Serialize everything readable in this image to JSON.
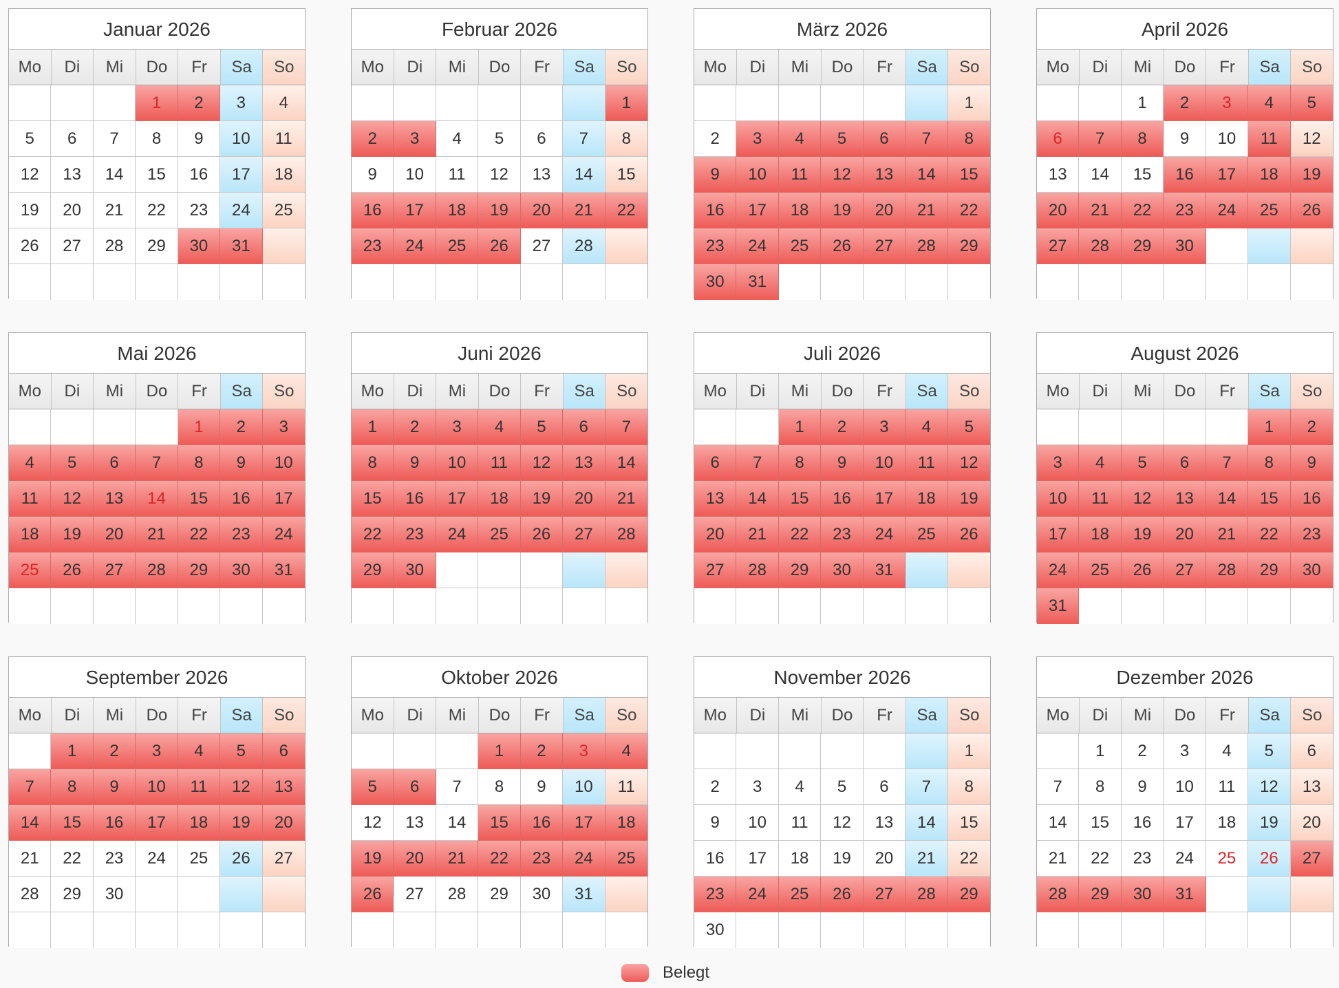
{
  "weekdays": [
    "Mo",
    "Di",
    "Mi",
    "Do",
    "Fr",
    "Sa",
    "So"
  ],
  "colors": {
    "booked": "#f07470",
    "saturday": "#c7ecfb",
    "sunday": "#fde0d4",
    "holiday_text": "#d8272b"
  },
  "months": [
    {
      "title": "Januar 2026",
      "start": 3,
      "days": 31,
      "booked": [
        1,
        2,
        30,
        31
      ],
      "holidays": [
        1
      ]
    },
    {
      "title": "Februar 2026",
      "start": 6,
      "days": 28,
      "booked": [
        1,
        2,
        3,
        16,
        17,
        18,
        19,
        20,
        21,
        22,
        23,
        24,
        25,
        26
      ],
      "holidays": []
    },
    {
      "title": "März 2026",
      "start": 6,
      "days": 31,
      "booked": [
        3,
        4,
        5,
        6,
        7,
        8,
        9,
        10,
        11,
        12,
        13,
        14,
        15,
        16,
        17,
        18,
        19,
        20,
        21,
        22,
        23,
        24,
        25,
        26,
        27,
        28,
        29,
        30,
        31
      ],
      "holidays": []
    },
    {
      "title": "April 2026",
      "start": 2,
      "days": 30,
      "booked": [
        2,
        3,
        4,
        5,
        6,
        7,
        8,
        11,
        16,
        17,
        18,
        19,
        20,
        21,
        22,
        23,
        24,
        25,
        26,
        27,
        28,
        29,
        30
      ],
      "holidays": [
        3,
        6
      ]
    },
    {
      "title": "Mai 2026",
      "start": 4,
      "days": 31,
      "booked": [
        1,
        2,
        3,
        4,
        5,
        6,
        7,
        8,
        9,
        10,
        11,
        12,
        13,
        14,
        15,
        16,
        17,
        18,
        19,
        20,
        21,
        22,
        23,
        24,
        25,
        26,
        27,
        28,
        29,
        30,
        31
      ],
      "holidays": [
        1,
        14,
        25
      ]
    },
    {
      "title": "Juni 2026",
      "start": 0,
      "days": 30,
      "booked": [
        1,
        2,
        3,
        4,
        5,
        6,
        7,
        8,
        9,
        10,
        11,
        12,
        13,
        14,
        15,
        16,
        17,
        18,
        19,
        20,
        21,
        22,
        23,
        24,
        25,
        26,
        27,
        28,
        29,
        30
      ],
      "holidays": []
    },
    {
      "title": "Juli 2026",
      "start": 2,
      "days": 31,
      "booked": [
        1,
        2,
        3,
        4,
        5,
        6,
        7,
        8,
        9,
        10,
        11,
        12,
        13,
        14,
        15,
        16,
        17,
        18,
        19,
        20,
        21,
        22,
        23,
        24,
        25,
        26,
        27,
        28,
        29,
        30,
        31
      ],
      "holidays": []
    },
    {
      "title": "August 2026",
      "start": 5,
      "days": 31,
      "booked": [
        1,
        2,
        3,
        4,
        5,
        6,
        7,
        8,
        9,
        10,
        11,
        12,
        13,
        14,
        15,
        16,
        17,
        18,
        19,
        20,
        21,
        22,
        23,
        24,
        25,
        26,
        27,
        28,
        29,
        30,
        31
      ],
      "holidays": []
    },
    {
      "title": "September 2026",
      "start": 1,
      "days": 30,
      "booked": [
        1,
        2,
        3,
        4,
        5,
        6,
        7,
        8,
        9,
        10,
        11,
        12,
        13,
        14,
        15,
        16,
        17,
        18,
        19,
        20
      ],
      "holidays": []
    },
    {
      "title": "Oktober 2026",
      "start": 3,
      "days": 31,
      "booked": [
        1,
        2,
        3,
        4,
        5,
        6,
        15,
        16,
        17,
        18,
        19,
        20,
        21,
        22,
        23,
        24,
        25,
        26
      ],
      "holidays": [
        3
      ]
    },
    {
      "title": "November 2026",
      "start": 6,
      "days": 30,
      "booked": [
        23,
        24,
        25,
        26,
        27,
        28,
        29
      ],
      "holidays": []
    },
    {
      "title": "Dezember 2026",
      "start": 1,
      "days": 31,
      "booked": [
        27,
        28,
        29,
        30,
        31
      ],
      "holidays": [
        25,
        26
      ]
    }
  ],
  "legend": {
    "label": "Belegt"
  }
}
